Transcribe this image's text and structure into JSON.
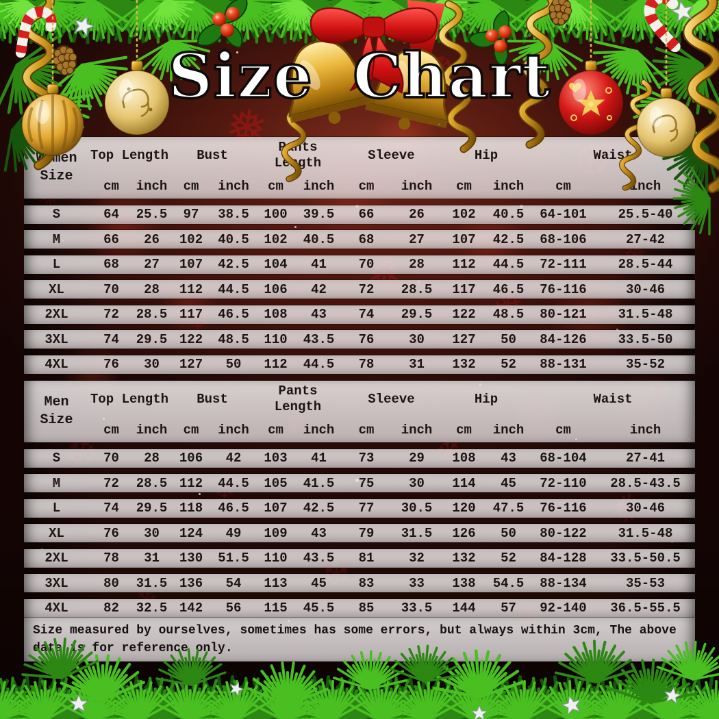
{
  "title": "Size Chart",
  "footer_note": "Size measured by ourselves, sometimes has some errors, but always within 3cm, The above data is for reference only.",
  "unit_row": [
    "cm",
    "inch",
    "cm",
    "inch",
    "cm",
    "inch",
    "cm",
    "inch",
    "cm",
    "inch",
    "cm",
    "inch"
  ],
  "tables": [
    {
      "name": "women",
      "size_label": {
        "l1": "Women",
        "l2": "Size"
      },
      "groups": [
        "Top Length",
        "Bust",
        "Pants Length",
        "Sleeve",
        "Hip",
        "Waist"
      ],
      "rows": [
        {
          "size": "S",
          "values": [
            "64",
            "25.5",
            "97",
            "38.5",
            "100",
            "39.5",
            "66",
            "26",
            "102",
            "40.5",
            "64-101",
            "25.5-40"
          ]
        },
        {
          "size": "M",
          "values": [
            "66",
            "26",
            "102",
            "40.5",
            "102",
            "40.5",
            "68",
            "27",
            "107",
            "42.5",
            "68-106",
            "27-42"
          ]
        },
        {
          "size": "L",
          "values": [
            "68",
            "27",
            "107",
            "42.5",
            "104",
            "41",
            "70",
            "28",
            "112",
            "44.5",
            "72-111",
            "28.5-44"
          ]
        },
        {
          "size": "XL",
          "values": [
            "70",
            "28",
            "112",
            "44.5",
            "106",
            "42",
            "72",
            "28.5",
            "117",
            "46.5",
            "76-116",
            "30-46"
          ]
        },
        {
          "size": "2XL",
          "values": [
            "72",
            "28.5",
            "117",
            "46.5",
            "108",
            "43",
            "74",
            "29.5",
            "122",
            "48.5",
            "80-121",
            "31.5-48"
          ]
        },
        {
          "size": "3XL",
          "values": [
            "74",
            "29.5",
            "122",
            "48.5",
            "110",
            "43.5",
            "76",
            "30",
            "127",
            "50",
            "84-126",
            "33.5-50"
          ]
        },
        {
          "size": "4XL",
          "values": [
            "76",
            "30",
            "127",
            "50",
            "112",
            "44.5",
            "78",
            "31",
            "132",
            "52",
            "88-131",
            "35-52"
          ]
        }
      ]
    },
    {
      "name": "men",
      "size_label": {
        "l1": "Men",
        "l2": "Size"
      },
      "groups": [
        "Top Length",
        "Bust",
        "Pants Length",
        "Sleeve",
        "Hip",
        "Waist"
      ],
      "rows": [
        {
          "size": "S",
          "values": [
            "70",
            "28",
            "106",
            "42",
            "103",
            "41",
            "73",
            "29",
            "108",
            "43",
            "68-104",
            "27-41"
          ]
        },
        {
          "size": "M",
          "values": [
            "72",
            "28.5",
            "112",
            "44.5",
            "105",
            "41.5",
            "75",
            "30",
            "114",
            "45",
            "72-110",
            "28.5-43.5"
          ]
        },
        {
          "size": "L",
          "values": [
            "74",
            "29.5",
            "118",
            "46.5",
            "107",
            "42.5",
            "77",
            "30.5",
            "120",
            "47.5",
            "76-116",
            "30-46"
          ]
        },
        {
          "size": "XL",
          "values": [
            "76",
            "30",
            "124",
            "49",
            "109",
            "43",
            "79",
            "31.5",
            "126",
            "50",
            "80-122",
            "31.5-48"
          ]
        },
        {
          "size": "2XL",
          "values": [
            "78",
            "31",
            "130",
            "51.5",
            "110",
            "43.5",
            "81",
            "32",
            "132",
            "52",
            "84-128",
            "33.5-50.5"
          ]
        },
        {
          "size": "3XL",
          "values": [
            "80",
            "31.5",
            "136",
            "54",
            "113",
            "45",
            "83",
            "33",
            "138",
            "54.5",
            "88-134",
            "35-53"
          ]
        },
        {
          "size": "4XL",
          "values": [
            "82",
            "32.5",
            "142",
            "56",
            "115",
            "45.5",
            "85",
            "33.5",
            "144",
            "57",
            "92-140",
            "36.5-55.5"
          ]
        }
      ]
    }
  ],
  "icons": {
    "snowflake": "❅",
    "snowflake2": "❆",
    "snowflake3": "❄"
  },
  "colors": {
    "background_red": "#5a1b11",
    "pine_green": "#2c8713",
    "gold": "#d9a125",
    "table_band": "#eee8e9",
    "text": "#1c1412",
    "snowflake_red": "#bb1416"
  }
}
